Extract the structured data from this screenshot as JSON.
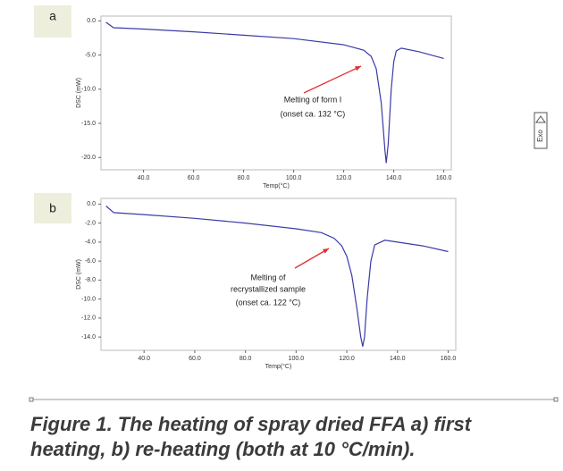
{
  "chart_data": [
    {
      "type": "line",
      "panel": "a",
      "xlabel": "Temp(°C)",
      "ylabel": "DSC (mW)",
      "xlim": [
        23,
        163
      ],
      "ylim": [
        -21.8,
        0.7
      ],
      "xticks": [
        {
          "value": 40,
          "label": "40.0"
        },
        {
          "value": 60,
          "label": "60.0"
        },
        {
          "value": 80,
          "label": "80.0"
        },
        {
          "value": 100,
          "label": "100.0"
        },
        {
          "value": 120,
          "label": "120.0"
        },
        {
          "value": 140,
          "label": "140.0"
        },
        {
          "value": 160,
          "label": "160.0"
        }
      ],
      "yticks": [
        {
          "value": 0,
          "label": "0.0"
        },
        {
          "value": -5,
          "label": "-5.0"
        },
        {
          "value": -10,
          "label": "-10.0"
        },
        {
          "value": -15,
          "label": "-15.0"
        },
        {
          "value": -20,
          "label": "-20.0"
        }
      ],
      "annotations": [
        "Melting of form I",
        "(onset ca. 132 °C)"
      ],
      "series": [
        {
          "color": "#3a3aa8",
          "x": [
            25,
            28,
            40,
            60,
            80,
            100,
            120,
            128,
            131,
            133,
            135,
            136.5,
            137,
            137.8,
            139,
            140,
            141,
            143,
            150,
            160
          ],
          "values": [
            -0.2,
            -1.0,
            -1.2,
            -1.6,
            -2.1,
            -2.6,
            -3.5,
            -4.3,
            -5.2,
            -7,
            -12,
            -19,
            -20.8,
            -18,
            -10,
            -6,
            -4.4,
            -4.0,
            -4.5,
            -5.5
          ]
        }
      ]
    },
    {
      "type": "line",
      "panel": "b",
      "xlabel": "Temp(°C)",
      "ylabel": "DSC (mW)",
      "xlim": [
        23,
        163
      ],
      "ylim": [
        -15.4,
        0.6
      ],
      "xticks": [
        {
          "value": 40,
          "label": "40.0"
        },
        {
          "value": 60,
          "label": "60.0"
        },
        {
          "value": 80,
          "label": "80.0"
        },
        {
          "value": 100,
          "label": "100.0"
        },
        {
          "value": 120,
          "label": "120.0"
        },
        {
          "value": 140,
          "label": "140.0"
        },
        {
          "value": 160,
          "label": "160.0"
        }
      ],
      "yticks": [
        {
          "value": 0,
          "label": "0.0"
        },
        {
          "value": -2,
          "label": "-2.0"
        },
        {
          "value": -4,
          "label": "-4.0"
        },
        {
          "value": -6,
          "label": "-6.0"
        },
        {
          "value": -8,
          "label": "-8.0"
        },
        {
          "value": -10,
          "label": "-10.0"
        },
        {
          "value": -12,
          "label": "-12.0"
        },
        {
          "value": -14,
          "label": "-14.0"
        }
      ],
      "annotations": [
        "Melting of",
        "recrystallized sample",
        "(onset ca. 122 °C)"
      ],
      "series": [
        {
          "color": "#3a3aa8",
          "x": [
            25,
            28,
            40,
            60,
            80,
            100,
            110,
            115,
            118,
            120,
            122,
            124,
            125.5,
            126.3,
            127,
            128,
            129.5,
            131,
            135,
            140,
            150,
            160
          ],
          "values": [
            -0.2,
            -0.9,
            -1.1,
            -1.5,
            -2.0,
            -2.6,
            -3.0,
            -3.6,
            -4.4,
            -5.5,
            -7.5,
            -11,
            -14,
            -15,
            -14,
            -10,
            -6,
            -4.3,
            -3.8,
            -4.0,
            -4.4,
            -5.0
          ]
        }
      ]
    }
  ],
  "exo_label": "Exo",
  "caption": [
    "Figure 1. The heating of spray dried FFA a)  first",
    "heating, b) re-heating (both at 10 °C/min)."
  ]
}
